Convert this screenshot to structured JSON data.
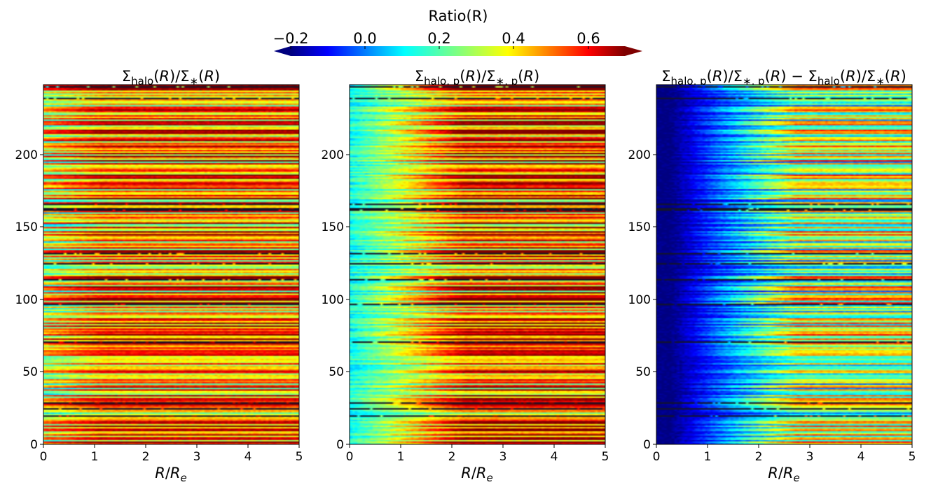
{
  "figure": {
    "colorbar": {
      "label": "Ratio(R)",
      "ticks": [
        "−0.2",
        "0.0",
        "0.2",
        "0.4",
        "0.6"
      ],
      "tick_values": [
        -0.2,
        0.0,
        0.2,
        0.4,
        0.6
      ],
      "range": [
        -0.25,
        0.7
      ],
      "colormap": "jet",
      "extend": "both"
    }
  },
  "chart_data": [
    {
      "type": "heatmap",
      "title": "Σ_halo(R)/Σ_*(R)",
      "xlabel": "R/R_e",
      "ylabel": "",
      "xlim": [
        0,
        5
      ],
      "ylim": [
        0,
        248
      ],
      "xticks": [
        "0",
        "1",
        "2",
        "3",
        "4",
        "5"
      ],
      "yticks": [
        "0",
        "50",
        "100",
        "150",
        "200"
      ],
      "n_rows": 248,
      "n_radial_bins": 100,
      "value_summary": {
        "center_min": 0.25,
        "outer_typical": [
          0.2,
          0.7
        ]
      }
    },
    {
      "type": "heatmap",
      "title": "Σ_halo,p(R)/Σ_*,p(R)",
      "xlabel": "R/R_e",
      "ylabel": "",
      "xlim": [
        0,
        5
      ],
      "ylim": [
        0,
        248
      ],
      "xticks": [
        "0",
        "1",
        "2",
        "3",
        "4",
        "5"
      ],
      "yticks": [
        "0",
        "50",
        "100",
        "150",
        "200"
      ],
      "n_rows": 248,
      "n_radial_bins": 100,
      "value_summary": {
        "center_min": 0.1,
        "outer_typical": [
          0.3,
          0.7
        ]
      }
    },
    {
      "type": "heatmap",
      "title": "Σ_halo,p(R)/Σ_*,p(R) − Σ_halo(R)/Σ_*(R)",
      "xlabel": "R/R_e",
      "ylabel": "",
      "xlim": [
        0,
        5
      ],
      "ylim": [
        0,
        248
      ],
      "xticks": [
        "0",
        "1",
        "2",
        "3",
        "4",
        "5"
      ],
      "yticks": [
        "0",
        "50",
        "100",
        "150",
        "200"
      ],
      "n_rows": 248,
      "n_radial_bins": 100,
      "value_summary": {
        "center_min": -0.25,
        "outer_typical": [
          0.0,
          0.5
        ]
      }
    }
  ]
}
